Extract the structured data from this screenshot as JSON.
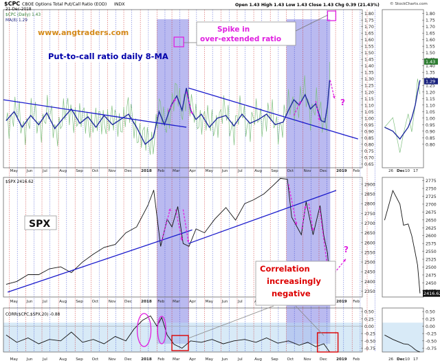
{
  "header": {
    "symbol": "$CPC",
    "name": "CBOE Options Total Put/Call Ratio (EOD)",
    "exchange": "INDX",
    "date": "21-Dec-2018",
    "ohlc": "Open 1.43  High 1.43  Low 1.43  Close 1.43  Chg 0.39 (21.43%)",
    "watermark": "© StockCharts.com"
  },
  "panels": {
    "cpc": {
      "legend_1": "$CPC (Daily) 1.43",
      "legend_2": "MA(8) 1.29",
      "y_ticks": [
        0.65,
        0.7,
        0.75,
        0.8,
        0.85,
        0.9,
        0.95,
        1.0,
        1.05,
        1.1,
        1.15,
        1.2,
        1.25,
        1.3,
        1.35,
        1.4,
        1.45,
        1.5,
        1.55,
        1.6,
        1.65,
        1.7,
        1.75,
        1.8
      ],
      "ylim": [
        0.62,
        1.83
      ],
      "badges": [
        {
          "text": "1.43",
          "value": 1.43,
          "color": "#2e7d32"
        },
        {
          "text": "1.29",
          "value": 1.29,
          "color": "#1a237e"
        }
      ]
    },
    "spx": {
      "legend": "$SPX 2416.62",
      "y_ticks": [
        2350,
        2400,
        2450,
        2500,
        2550,
        2600,
        2650,
        2700,
        2750,
        2800,
        2850,
        2900
      ],
      "ylim": [
        2320,
        2935
      ],
      "badge": {
        "text": "2416.62",
        "value": 2416.62
      }
    },
    "spx_zoom": {
      "y_ticks": [
        2425,
        2450,
        2475,
        2500,
        2525,
        2550,
        2575,
        2600,
        2625,
        2650,
        2675,
        2700,
        2725,
        2750,
        2775
      ],
      "ylim": [
        2405,
        2785
      ]
    },
    "corr": {
      "legend": "CORR($CPC,$SPX,20) -0.88",
      "y_ticks": [
        -0.75,
        -0.5,
        -0.25,
        0.0,
        0.25,
        0.5
      ],
      "ylim": [
        -0.88,
        0.62
      ]
    }
  },
  "x_axis": {
    "main_labels": [
      "May",
      "Jun",
      "Jul",
      "Aug",
      "Sep",
      "Oct",
      "Nov",
      "Dec",
      "2018",
      "Feb",
      "Mar",
      "Apr",
      "May",
      "Jun",
      "Jul",
      "Aug",
      "Sep",
      "Oct",
      "Nov",
      "Dec",
      "2019",
      "Feb"
    ],
    "zoom_labels": [
      "26",
      "Dec",
      "10",
      "17"
    ]
  },
  "annotations": {
    "site": "www.angtraders.com",
    "ma_title": "Put-to-call ratio daily 8-MA",
    "spike": [
      "Spike in",
      "over-extended ratio"
    ],
    "spx_label": "SPX",
    "correlation": [
      "Correlation",
      "increasingly",
      "negative"
    ],
    "question": "?"
  },
  "chart_data": [
    {
      "type": "line",
      "title": "CBOE Options Total Put/Call Ratio (EOD)",
      "series": [
        {
          "name": "MA(8)",
          "x": [
            "2017-04-25",
            "2017-05-10",
            "2017-05-25",
            "2017-06-10",
            "2017-06-25",
            "2017-07-10",
            "2017-07-25",
            "2017-08-10",
            "2017-08-25",
            "2017-09-10",
            "2017-09-25",
            "2017-10-10",
            "2017-10-25",
            "2017-11-10",
            "2017-11-25",
            "2017-12-10",
            "2017-12-25",
            "2018-01-10",
            "2018-01-25",
            "2018-02-05",
            "2018-02-15",
            "2018-02-28",
            "2018-03-10",
            "2018-03-20",
            "2018-03-28",
            "2018-04-05",
            "2018-04-15",
            "2018-04-25",
            "2018-05-10",
            "2018-05-25",
            "2018-06-10",
            "2018-06-25",
            "2018-07-10",
            "2018-07-25",
            "2018-08-10",
            "2018-08-25",
            "2018-09-10",
            "2018-09-25",
            "2018-10-05",
            "2018-10-15",
            "2018-10-25",
            "2018-11-05",
            "2018-11-15",
            "2018-11-25",
            "2018-12-05",
            "2018-12-12",
            "2018-12-17",
            "2018-12-21"
          ],
          "values": [
            0.98,
            1.05,
            0.93,
            1.02,
            0.95,
            1.04,
            0.92,
            1.0,
            1.07,
            0.96,
            1.01,
            0.93,
            1.02,
            0.95,
            0.99,
            1.03,
            0.93,
            0.8,
            0.85,
            1.05,
            0.95,
            1.1,
            1.17,
            1.06,
            1.23,
            1.06,
            0.99,
            1.03,
            0.93,
            1.0,
            1.02,
            0.94,
            1.03,
            0.96,
            0.99,
            1.03,
            0.95,
            0.97,
            1.06,
            1.14,
            1.1,
            1.18,
            1.07,
            1.11,
            0.98,
            0.97,
            1.1,
            1.29
          ]
        }
      ],
      "daily_close": 1.43,
      "ylim": [
        0.62,
        1.83
      ]
    },
    {
      "type": "line",
      "title": "$SPX",
      "series": [
        {
          "name": "$SPX",
          "x": [
            "2017-04-25",
            "2017-05-15",
            "2017-06-05",
            "2017-06-25",
            "2017-07-15",
            "2017-08-05",
            "2017-08-25",
            "2017-09-15",
            "2017-10-05",
            "2017-10-25",
            "2017-11-15",
            "2017-12-05",
            "2017-12-25",
            "2018-01-15",
            "2018-01-26",
            "2018-02-08",
            "2018-02-20",
            "2018-03-01",
            "2018-03-12",
            "2018-03-22",
            "2018-04-02",
            "2018-04-15",
            "2018-05-01",
            "2018-05-20",
            "2018-06-10",
            "2018-06-28",
            "2018-07-15",
            "2018-08-01",
            "2018-08-20",
            "2018-09-05",
            "2018-09-20",
            "2018-10-03",
            "2018-10-11",
            "2018-10-29",
            "2018-11-07",
            "2018-11-20",
            "2018-12-03",
            "2018-12-10",
            "2018-12-17",
            "2018-12-21"
          ],
          "values": [
            2385,
            2400,
            2435,
            2435,
            2465,
            2475,
            2445,
            2500,
            2540,
            2575,
            2590,
            2650,
            2680,
            2790,
            2870,
            2580,
            2720,
            2680,
            2785,
            2595,
            2580,
            2670,
            2650,
            2720,
            2780,
            2715,
            2800,
            2820,
            2850,
            2890,
            2930,
            2925,
            2730,
            2640,
            2810,
            2640,
            2790,
            2635,
            2545,
            2416.62
          ]
        }
      ],
      "ylim": [
        2320,
        2935
      ]
    },
    {
      "type": "line",
      "title": "CORR($CPC,$SPX,20)",
      "series": [
        {
          "name": "CORR(20)",
          "x": [
            "2017-04-25",
            "2017-05-15",
            "2017-06-05",
            "2017-06-25",
            "2017-07-15",
            "2017-08-05",
            "2017-08-25",
            "2017-09-15",
            "2017-10-05",
            "2017-10-25",
            "2017-11-15",
            "2017-12-05",
            "2017-12-20",
            "2018-01-05",
            "2018-01-20",
            "2018-02-01",
            "2018-02-10",
            "2018-02-20",
            "2018-03-05",
            "2018-03-20",
            "2018-04-05",
            "2018-04-25",
            "2018-05-15",
            "2018-06-05",
            "2018-06-25",
            "2018-07-15",
            "2018-08-05",
            "2018-08-25",
            "2018-09-15",
            "2018-10-05",
            "2018-10-25",
            "2018-11-10",
            "2018-11-25",
            "2018-12-10",
            "2018-12-21"
          ],
          "values": [
            -0.3,
            -0.55,
            -0.4,
            -0.6,
            -0.45,
            -0.5,
            -0.2,
            -0.55,
            -0.45,
            -0.6,
            -0.35,
            -0.5,
            -0.1,
            0.2,
            0.35,
            0.0,
            0.3,
            -0.3,
            -0.62,
            -0.75,
            -0.5,
            -0.55,
            -0.45,
            -0.6,
            -0.5,
            -0.45,
            -0.55,
            -0.4,
            -0.58,
            -0.5,
            -0.65,
            -0.55,
            -0.7,
            -0.6,
            -0.88
          ]
        }
      ],
      "ylim": [
        -0.88,
        0.62
      ]
    }
  ],
  "zoom_data": {
    "x": [
      "2018-11-21",
      "2018-11-28",
      "2018-12-04",
      "2018-12-07",
      "2018-12-11",
      "2018-12-14",
      "2018-12-17",
      "2018-12-19",
      "2018-12-21"
    ],
    "cpc_ma": [
      0.93,
      0.9,
      0.84,
      0.88,
      0.93,
      1.0,
      1.1,
      1.2,
      1.29
    ],
    "spx": [
      2649,
      2743,
      2700,
      2633,
      2637,
      2600,
      2545,
      2506,
      2416.62
    ],
    "corr": [
      -0.3,
      -0.45,
      -0.55,
      -0.6,
      -0.62,
      -0.7,
      -0.8,
      -0.85,
      -0.88
    ]
  },
  "colors": {
    "ma": "#1f2a9e",
    "daily": "#7fbf7f",
    "trend": "#1a1acc",
    "annot": "#e020e0",
    "highlight": "#6666dd",
    "red_box": "#dd0000",
    "cpc_label": "#0000aa"
  }
}
